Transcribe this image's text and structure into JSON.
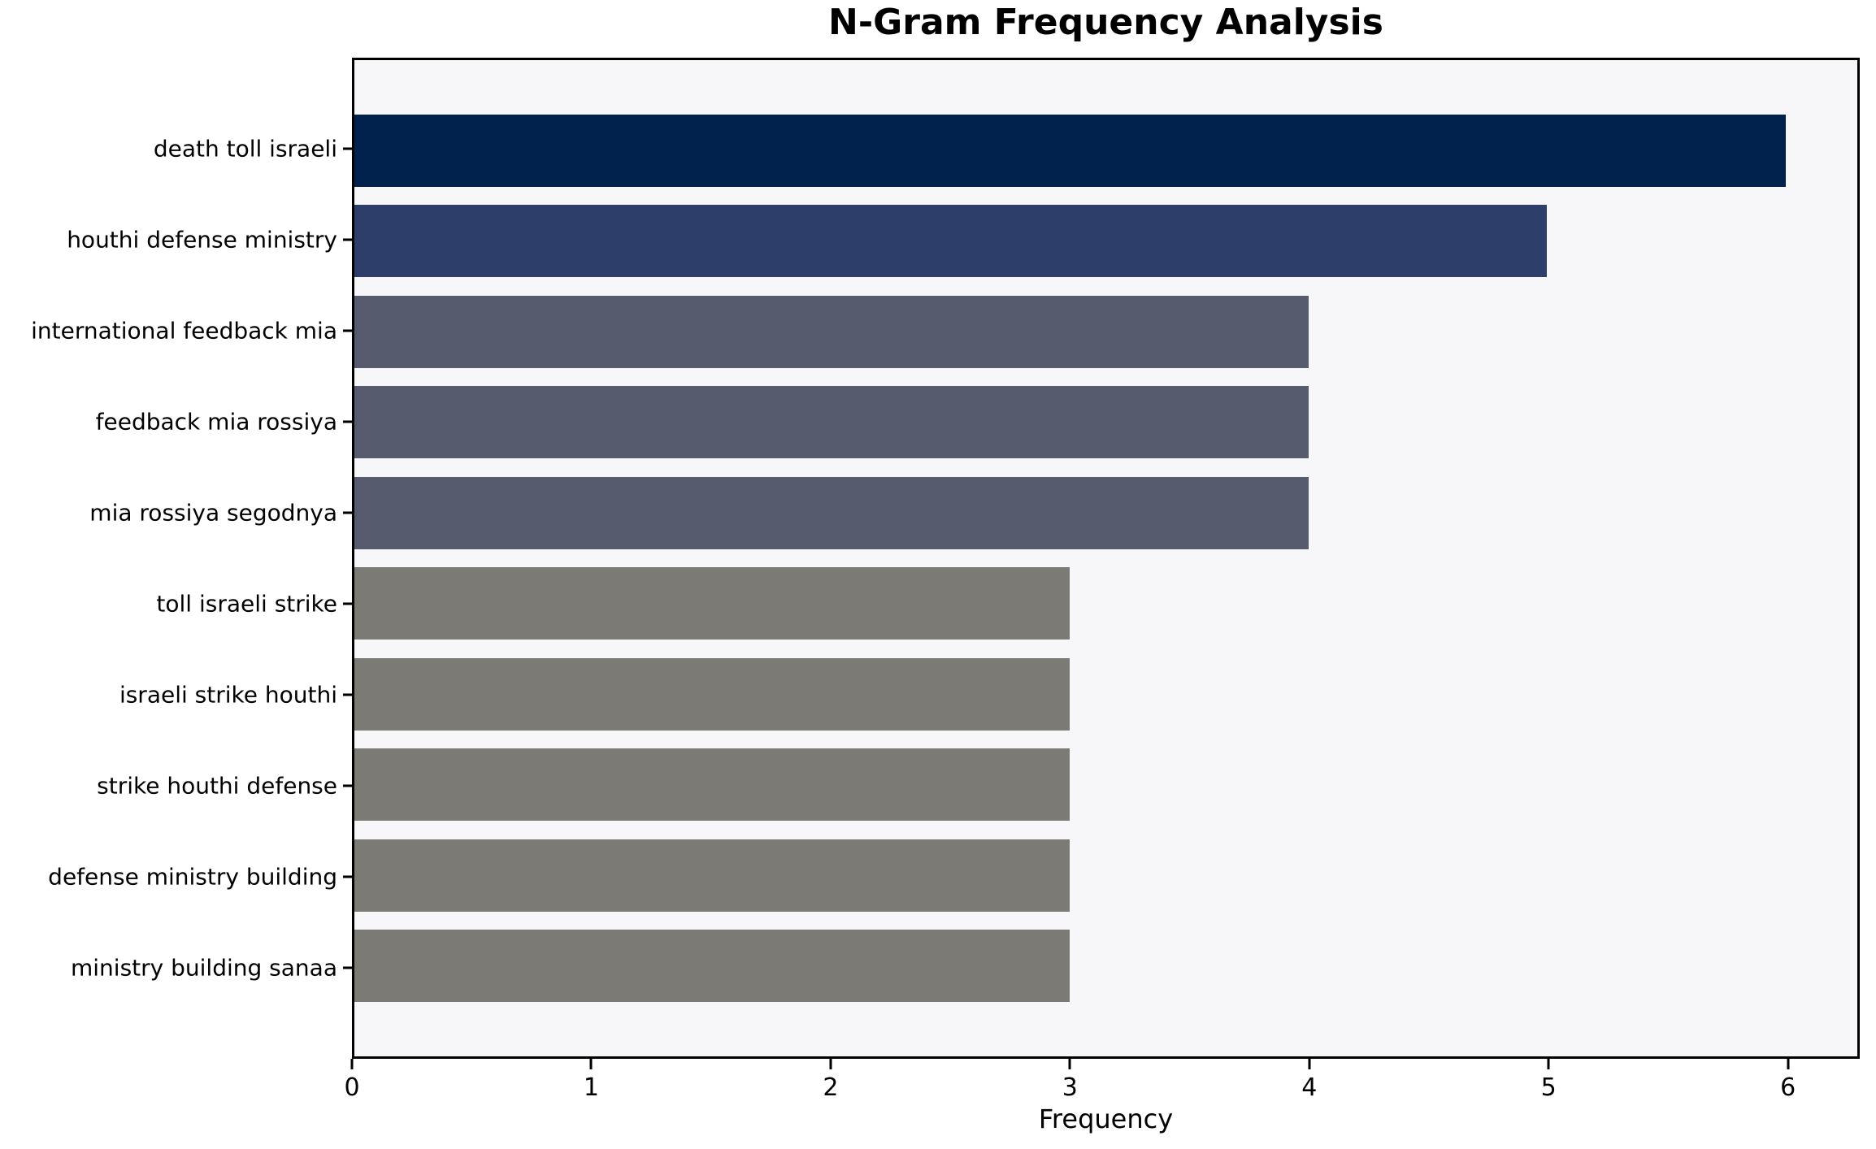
{
  "chart_data": {
    "type": "bar",
    "orientation": "horizontal",
    "title": "N-Gram Frequency Analysis",
    "xlabel": "Frequency",
    "ylabel": "",
    "categories": [
      "death toll israeli",
      "houthi defense ministry",
      "international feedback mia",
      "feedback mia rossiya",
      "mia rossiya segodnya",
      "toll israeli strike",
      "israeli strike houthi",
      "strike houthi defense",
      "defense ministry building",
      "ministry building sanaa"
    ],
    "values": [
      6,
      5,
      4,
      4,
      4,
      3,
      3,
      3,
      3,
      3
    ],
    "bar_colors": [
      "#02224e",
      "#2d3e6b",
      "#565c6e",
      "#565c6e",
      "#565c6e",
      "#7b7a74",
      "#7b7a74",
      "#7b7a74",
      "#7b7a74",
      "#7b7a74"
    ],
    "xlim": [
      0,
      6.3
    ],
    "xticks": [
      0,
      1,
      2,
      3,
      4,
      5,
      6
    ],
    "grid": false,
    "legend": null,
    "plot_background": "#f7f7f9",
    "figure_background": "#ffffff",
    "frame_color": "#000000",
    "bar_fraction": 0.8
  }
}
